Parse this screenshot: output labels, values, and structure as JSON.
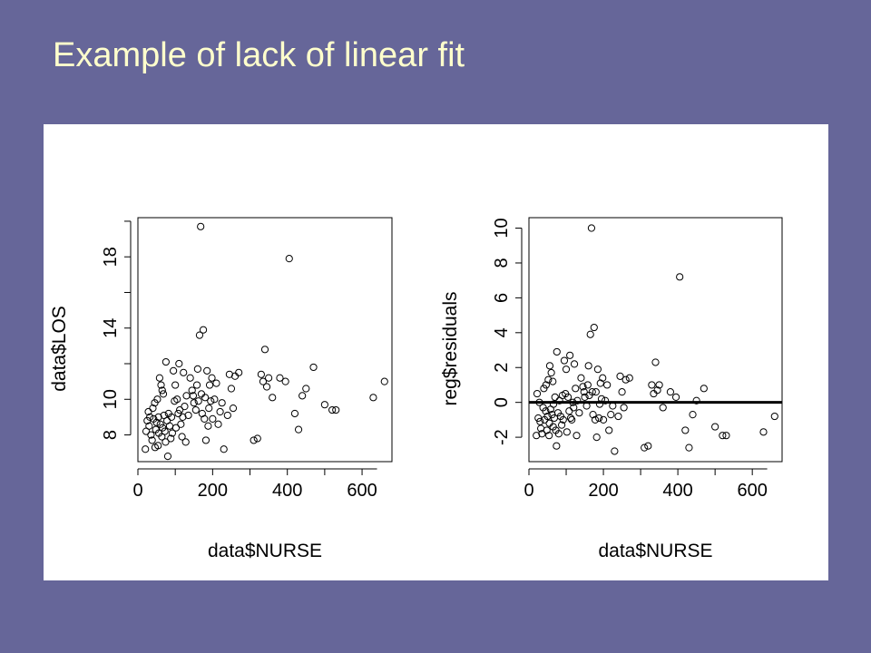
{
  "slide": {
    "title": "Example of lack of linear fit",
    "background": "#666699",
    "title_color": "#ffffcc"
  },
  "chart_data": [
    {
      "type": "scatter",
      "title": "",
      "xlabel": "data$NURSE",
      "ylabel": "data$LOS",
      "xlim": [
        0,
        680
      ],
      "ylim": [
        6.5,
        20.2
      ],
      "xticks": [
        0,
        200,
        400,
        600
      ],
      "xtick_labels": [
        "0",
        "200",
        "400",
        "600"
      ],
      "yticks": [
        8,
        10,
        12,
        14,
        16,
        18,
        20
      ],
      "ytick_labels": [
        "8",
        "10",
        "",
        "14",
        "",
        "18",
        ""
      ],
      "grid": false,
      "points": [
        [
          20,
          7.2
        ],
        [
          22,
          8.2
        ],
        [
          25,
          8.8
        ],
        [
          28,
          9.3
        ],
        [
          30,
          8.5
        ],
        [
          32,
          9.0
        ],
        [
          35,
          8.0
        ],
        [
          38,
          7.7
        ],
        [
          40,
          9.5
        ],
        [
          42,
          8.9
        ],
        [
          45,
          9.8
        ],
        [
          46,
          7.3
        ],
        [
          48,
          8.3
        ],
        [
          50,
          8.7
        ],
        [
          52,
          10.0
        ],
        [
          54,
          7.4
        ],
        [
          55,
          9.0
        ],
        [
          56,
          8.1
        ],
        [
          58,
          11.2
        ],
        [
          60,
          8.6
        ],
        [
          62,
          10.8
        ],
        [
          64,
          7.9
        ],
        [
          65,
          10.5
        ],
        [
          66,
          8.4
        ],
        [
          68,
          10.3
        ],
        [
          70,
          9.1
        ],
        [
          72,
          8.2
        ],
        [
          74,
          7.6
        ],
        [
          75,
          12.1
        ],
        [
          78,
          8.8
        ],
        [
          80,
          6.8
        ],
        [
          82,
          9.2
        ],
        [
          85,
          8.5
        ],
        [
          88,
          7.8
        ],
        [
          90,
          9.0
        ],
        [
          92,
          8.1
        ],
        [
          95,
          11.6
        ],
        [
          98,
          9.9
        ],
        [
          100,
          10.8
        ],
        [
          102,
          8.4
        ],
        [
          105,
          10.0
        ],
        [
          108,
          9.2
        ],
        [
          110,
          12.0
        ],
        [
          112,
          9.4
        ],
        [
          115,
          8.6
        ],
        [
          118,
          7.9
        ],
        [
          120,
          9.0
        ],
        [
          122,
          11.5
        ],
        [
          125,
          9.6
        ],
        [
          128,
          7.6
        ],
        [
          130,
          10.2
        ],
        [
          135,
          9.1
        ],
        [
          140,
          11.2
        ],
        [
          145,
          10.5
        ],
        [
          148,
          10.2
        ],
        [
          150,
          9.8
        ],
        [
          155,
          9.4
        ],
        [
          158,
          10.8
        ],
        [
          160,
          11.7
        ],
        [
          162,
          9.9
        ],
        [
          165,
          13.6
        ],
        [
          168,
          19.7
        ],
        [
          170,
          10.3
        ],
        [
          172,
          9.2
        ],
        [
          175,
          13.9
        ],
        [
          178,
          8.9
        ],
        [
          180,
          10.1
        ],
        [
          182,
          7.7
        ],
        [
          185,
          11.6
        ],
        [
          188,
          8.5
        ],
        [
          190,
          9.5
        ],
        [
          192,
          10.8
        ],
        [
          195,
          9.9
        ],
        [
          198,
          11.2
        ],
        [
          200,
          8.9
        ],
        [
          205,
          10.0
        ],
        [
          210,
          10.9
        ],
        [
          215,
          8.6
        ],
        [
          220,
          9.3
        ],
        [
          225,
          9.8
        ],
        [
          230,
          7.2
        ],
        [
          240,
          9.1
        ],
        [
          245,
          11.4
        ],
        [
          250,
          10.6
        ],
        [
          255,
          9.5
        ],
        [
          260,
          11.3
        ],
        [
          270,
          11.5
        ],
        [
          310,
          7.7
        ],
        [
          320,
          7.8
        ],
        [
          330,
          11.4
        ],
        [
          335,
          11.0
        ],
        [
          340,
          12.8
        ],
        [
          345,
          10.7
        ],
        [
          350,
          11.2
        ],
        [
          360,
          10.1
        ],
        [
          380,
          11.2
        ],
        [
          395,
          11.0
        ],
        [
          405,
          17.9
        ],
        [
          420,
          9.2
        ],
        [
          430,
          8.3
        ],
        [
          440,
          10.2
        ],
        [
          450,
          10.6
        ],
        [
          470,
          11.8
        ],
        [
          500,
          9.7
        ],
        [
          520,
          9.4
        ],
        [
          530,
          9.4
        ],
        [
          630,
          10.1
        ],
        [
          660,
          11.0
        ]
      ]
    },
    {
      "type": "scatter",
      "title": "",
      "xlabel": "data$NURSE",
      "ylabel": "reg$residuals",
      "xlim": [
        0,
        680
      ],
      "ylim": [
        -3.4,
        10.6
      ],
      "xticks": [
        0,
        200,
        400,
        600
      ],
      "xtick_labels": [
        "0",
        "200",
        "400",
        "600"
      ],
      "yticks": [
        -2,
        0,
        2,
        4,
        6,
        8,
        10
      ],
      "ytick_labels": [
        "-2",
        "0",
        "2",
        "4",
        "6",
        "8",
        "10"
      ],
      "grid": false,
      "reference_line": 0,
      "points": [
        [
          20,
          -1.9
        ],
        [
          22,
          0.5
        ],
        [
          25,
          -0.9
        ],
        [
          28,
          0.0
        ],
        [
          30,
          -1.1
        ],
        [
          32,
          -1.5
        ],
        [
          35,
          -1.8
        ],
        [
          38,
          -0.3
        ],
        [
          40,
          0.8
        ],
        [
          42,
          -1.0
        ],
        [
          45,
          -0.5
        ],
        [
          46,
          1.0
        ],
        [
          48,
          -1.6
        ],
        [
          50,
          -0.8
        ],
        [
          52,
          1.3
        ],
        [
          54,
          -1.9
        ],
        [
          55,
          -1.2
        ],
        [
          56,
          2.1
        ],
        [
          58,
          -0.4
        ],
        [
          60,
          1.7
        ],
        [
          62,
          -0.7
        ],
        [
          64,
          1.2
        ],
        [
          65,
          -1.4
        ],
        [
          66,
          -0.1
        ],
        [
          68,
          -0.9
        ],
        [
          70,
          0.3
        ],
        [
          72,
          -1.6
        ],
        [
          74,
          -2.5
        ],
        [
          75,
          2.9
        ],
        [
          78,
          -0.6
        ],
        [
          80,
          -1.8
        ],
        [
          82,
          0.1
        ],
        [
          85,
          -0.8
        ],
        [
          88,
          -1.3
        ],
        [
          90,
          0.4
        ],
        [
          92,
          -1.0
        ],
        [
          95,
          2.4
        ],
        [
          98,
          0.5
        ],
        [
          100,
          1.9
        ],
        [
          102,
          -1.7
        ],
        [
          105,
          0.3
        ],
        [
          108,
          -0.5
        ],
        [
          110,
          2.7
        ],
        [
          112,
          -0.9
        ],
        [
          115,
          -1.0
        ],
        [
          118,
          0.0
        ],
        [
          120,
          -0.3
        ],
        [
          122,
          2.2
        ],
        [
          125,
          0.8
        ],
        [
          128,
          -1.9
        ],
        [
          130,
          0.1
        ],
        [
          135,
          -0.6
        ],
        [
          140,
          1.4
        ],
        [
          145,
          0.9
        ],
        [
          148,
          0.6
        ],
        [
          150,
          0.3
        ],
        [
          155,
          -0.2
        ],
        [
          158,
          1.0
        ],
        [
          160,
          2.1
        ],
        [
          162,
          0.4
        ],
        [
          165,
          3.9
        ],
        [
          168,
          10.0
        ],
        [
          170,
          0.6
        ],
        [
          172,
          -0.7
        ],
        [
          175,
          4.3
        ],
        [
          178,
          -1.0
        ],
        [
          180,
          0.6
        ],
        [
          182,
          -2.0
        ],
        [
          185,
          1.9
        ],
        [
          188,
          -0.9
        ],
        [
          190,
          -0.1
        ],
        [
          192,
          1.1
        ],
        [
          195,
          0.2
        ],
        [
          198,
          1.4
        ],
        [
          200,
          -1.0
        ],
        [
          205,
          0.1
        ],
        [
          210,
          1.0
        ],
        [
          215,
          -1.6
        ],
        [
          220,
          -0.7
        ],
        [
          225,
          -0.2
        ],
        [
          230,
          -2.8
        ],
        [
          240,
          -0.8
        ],
        [
          245,
          1.5
        ],
        [
          250,
          0.6
        ],
        [
          255,
          -0.3
        ],
        [
          260,
          1.3
        ],
        [
          270,
          1.4
        ],
        [
          310,
          -2.6
        ],
        [
          320,
          -2.5
        ],
        [
          330,
          1.0
        ],
        [
          335,
          0.5
        ],
        [
          340,
          2.3
        ],
        [
          345,
          0.7
        ],
        [
          350,
          1.0
        ],
        [
          360,
          -0.3
        ],
        [
          380,
          0.6
        ],
        [
          395,
          0.3
        ],
        [
          405,
          7.2
        ],
        [
          420,
          -1.6
        ],
        [
          430,
          -2.6
        ],
        [
          440,
          -0.7
        ],
        [
          450,
          0.1
        ],
        [
          470,
          0.8
        ],
        [
          500,
          -1.4
        ],
        [
          520,
          -1.9
        ],
        [
          530,
          -1.9
        ],
        [
          630,
          -1.7
        ],
        [
          660,
          -0.8
        ]
      ]
    }
  ]
}
